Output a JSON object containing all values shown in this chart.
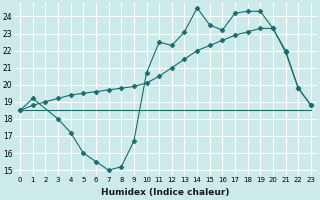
{
  "xlabel": "Humidex (Indice chaleur)",
  "bg_color": "#cceaea",
  "grid_color": "#ffffff",
  "line_color": "#1a6b6b",
  "xlim": [
    -0.5,
    23.5
  ],
  "ylim": [
    14.7,
    24.8
  ],
  "yticks": [
    15,
    16,
    17,
    18,
    19,
    20,
    21,
    22,
    23,
    24
  ],
  "xticks": [
    0,
    1,
    2,
    3,
    4,
    5,
    6,
    7,
    8,
    9,
    10,
    11,
    12,
    13,
    14,
    15,
    16,
    17,
    18,
    19,
    20,
    21,
    22,
    23
  ],
  "series": [
    {
      "x": [
        0,
        1,
        2,
        3,
        4,
        5,
        6,
        7,
        8,
        9,
        10,
        11,
        12,
        13,
        14,
        15,
        16,
        17,
        18,
        19,
        20,
        21,
        22,
        23
      ],
      "y": [
        18.5,
        18.5,
        18.5,
        18.5,
        18.5,
        18.5,
        18.5,
        18.5,
        18.5,
        18.5,
        18.5,
        18.5,
        18.5,
        18.5,
        18.5,
        18.5,
        18.5,
        18.5,
        18.5,
        18.5,
        18.5,
        18.5,
        18.5,
        18.5
      ],
      "markers": false,
      "stepped": true
    },
    {
      "x": [
        0,
        1,
        3,
        4,
        5,
        6,
        7,
        8,
        9,
        10,
        11,
        12,
        13,
        14,
        15,
        16,
        17,
        18,
        19,
        20,
        21,
        22,
        23
      ],
      "y": [
        18.5,
        19.2,
        18.0,
        17.2,
        16.0,
        15.5,
        15.0,
        15.2,
        16.7,
        20.7,
        22.5,
        22.3,
        23.1,
        24.5,
        23.5,
        23.2,
        24.2,
        24.3,
        24.3,
        23.3,
        21.9,
        19.8,
        18.8
      ],
      "markers": true
    },
    {
      "x": [
        0,
        1,
        2,
        3,
        4,
        5,
        6,
        7,
        8,
        9,
        10,
        11,
        12,
        13,
        14,
        15,
        16,
        17,
        18,
        19,
        20,
        21,
        22,
        23
      ],
      "y": [
        18.5,
        18.8,
        19.0,
        19.2,
        19.4,
        19.5,
        19.6,
        19.7,
        19.8,
        19.9,
        20.1,
        20.5,
        21.0,
        21.5,
        22.0,
        22.3,
        22.6,
        22.9,
        23.1,
        23.3,
        23.3,
        22.0,
        19.8,
        18.8
      ],
      "markers": true
    }
  ]
}
